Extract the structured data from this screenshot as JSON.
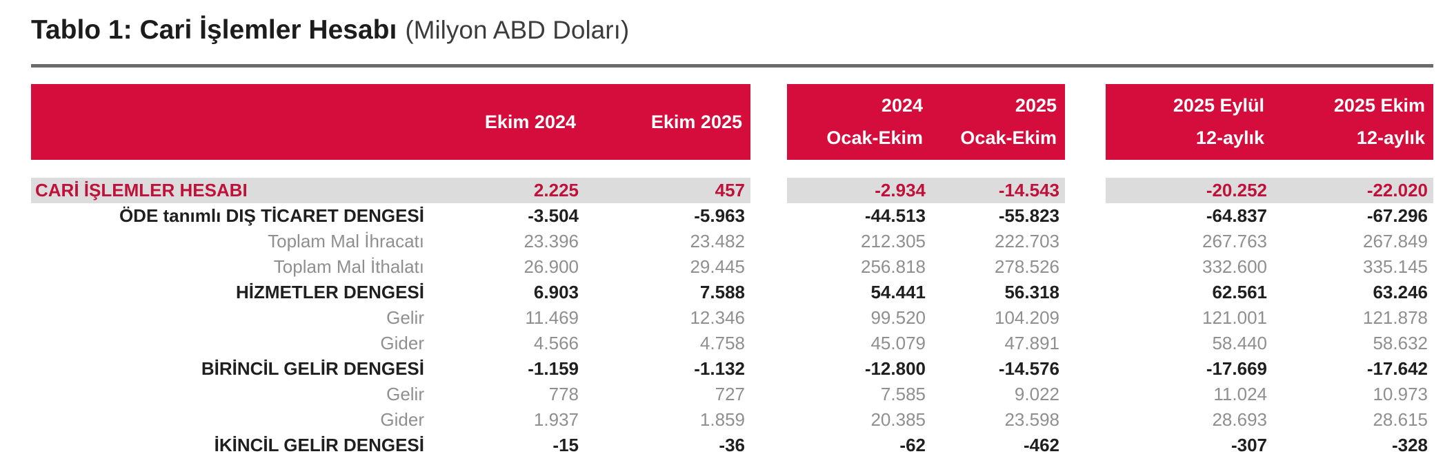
{
  "title": {
    "main": "Tablo 1: Cari İşlemler Hesabı",
    "unit": "(Milyon ABD Doları)"
  },
  "colors": {
    "header_red": "#d40d3c",
    "highlight_bg": "#dcdcdc",
    "highlight_text": "#c0113a",
    "bold_text": "#1f1f1f",
    "detail_text": "#8f8f8f",
    "rule_color": "#6a6a6a"
  },
  "chart_data": {
    "type": "table",
    "title": "Tablo 1: Cari İşlemler Hesabı",
    "unit": "Milyon ABD Doları",
    "column_groups": [
      {
        "columns": [
          {
            "lines": [
              "Ekim 2024"
            ]
          },
          {
            "lines": [
              "Ekim 2025"
            ]
          }
        ]
      },
      {
        "columns": [
          {
            "lines": [
              "2024",
              "Ocak-Ekim"
            ]
          },
          {
            "lines": [
              "2025",
              "Ocak-Ekim"
            ]
          }
        ]
      },
      {
        "columns": [
          {
            "lines": [
              "2025 Eylül",
              "12-aylık"
            ]
          },
          {
            "lines": [
              "2025 Ekim",
              "12-aylık"
            ]
          }
        ]
      }
    ],
    "rows": [
      {
        "label": "CARİ İŞLEMLER HESABI",
        "style": "highlight",
        "values": [
          "2.225",
          "457",
          "-2.934",
          "-14.543",
          "-20.252",
          "-22.020"
        ]
      },
      {
        "label": "ÖDE tanımlı DIŞ TİCARET DENGESİ",
        "style": "bold",
        "values": [
          "-3.504",
          "-5.963",
          "-44.513",
          "-55.823",
          "-64.837",
          "-67.296"
        ]
      },
      {
        "label": "Toplam Mal İhracatı",
        "style": "detail",
        "values": [
          "23.396",
          "23.482",
          "212.305",
          "222.703",
          "267.763",
          "267.849"
        ]
      },
      {
        "label": "Toplam Mal İthalatı",
        "style": "detail",
        "values": [
          "26.900",
          "29.445",
          "256.818",
          "278.526",
          "332.600",
          "335.145"
        ]
      },
      {
        "label": "HİZMETLER DENGESİ",
        "style": "bold",
        "values": [
          "6.903",
          "7.588",
          "54.441",
          "56.318",
          "62.561",
          "63.246"
        ]
      },
      {
        "label": "Gelir",
        "style": "detail",
        "values": [
          "11.469",
          "12.346",
          "99.520",
          "104.209",
          "121.001",
          "121.878"
        ]
      },
      {
        "label": "Gider",
        "style": "detail",
        "values": [
          "4.566",
          "4.758",
          "45.079",
          "47.891",
          "58.440",
          "58.632"
        ]
      },
      {
        "label": "BİRİNCİL GELİR DENGESİ",
        "style": "bold",
        "values": [
          "-1.159",
          "-1.132",
          "-12.800",
          "-14.576",
          "-17.669",
          "-17.642"
        ]
      },
      {
        "label": "Gelir",
        "style": "detail",
        "values": [
          "778",
          "727",
          "7.585",
          "9.022",
          "11.024",
          "10.973"
        ]
      },
      {
        "label": "Gider",
        "style": "detail",
        "values": [
          "1.937",
          "1.859",
          "20.385",
          "23.598",
          "28.693",
          "28.615"
        ]
      },
      {
        "label": "İKİNCİL GELİR DENGESİ",
        "style": "bold",
        "values": [
          "-15",
          "-36",
          "-62",
          "-462",
          "-307",
          "-328"
        ]
      }
    ]
  }
}
